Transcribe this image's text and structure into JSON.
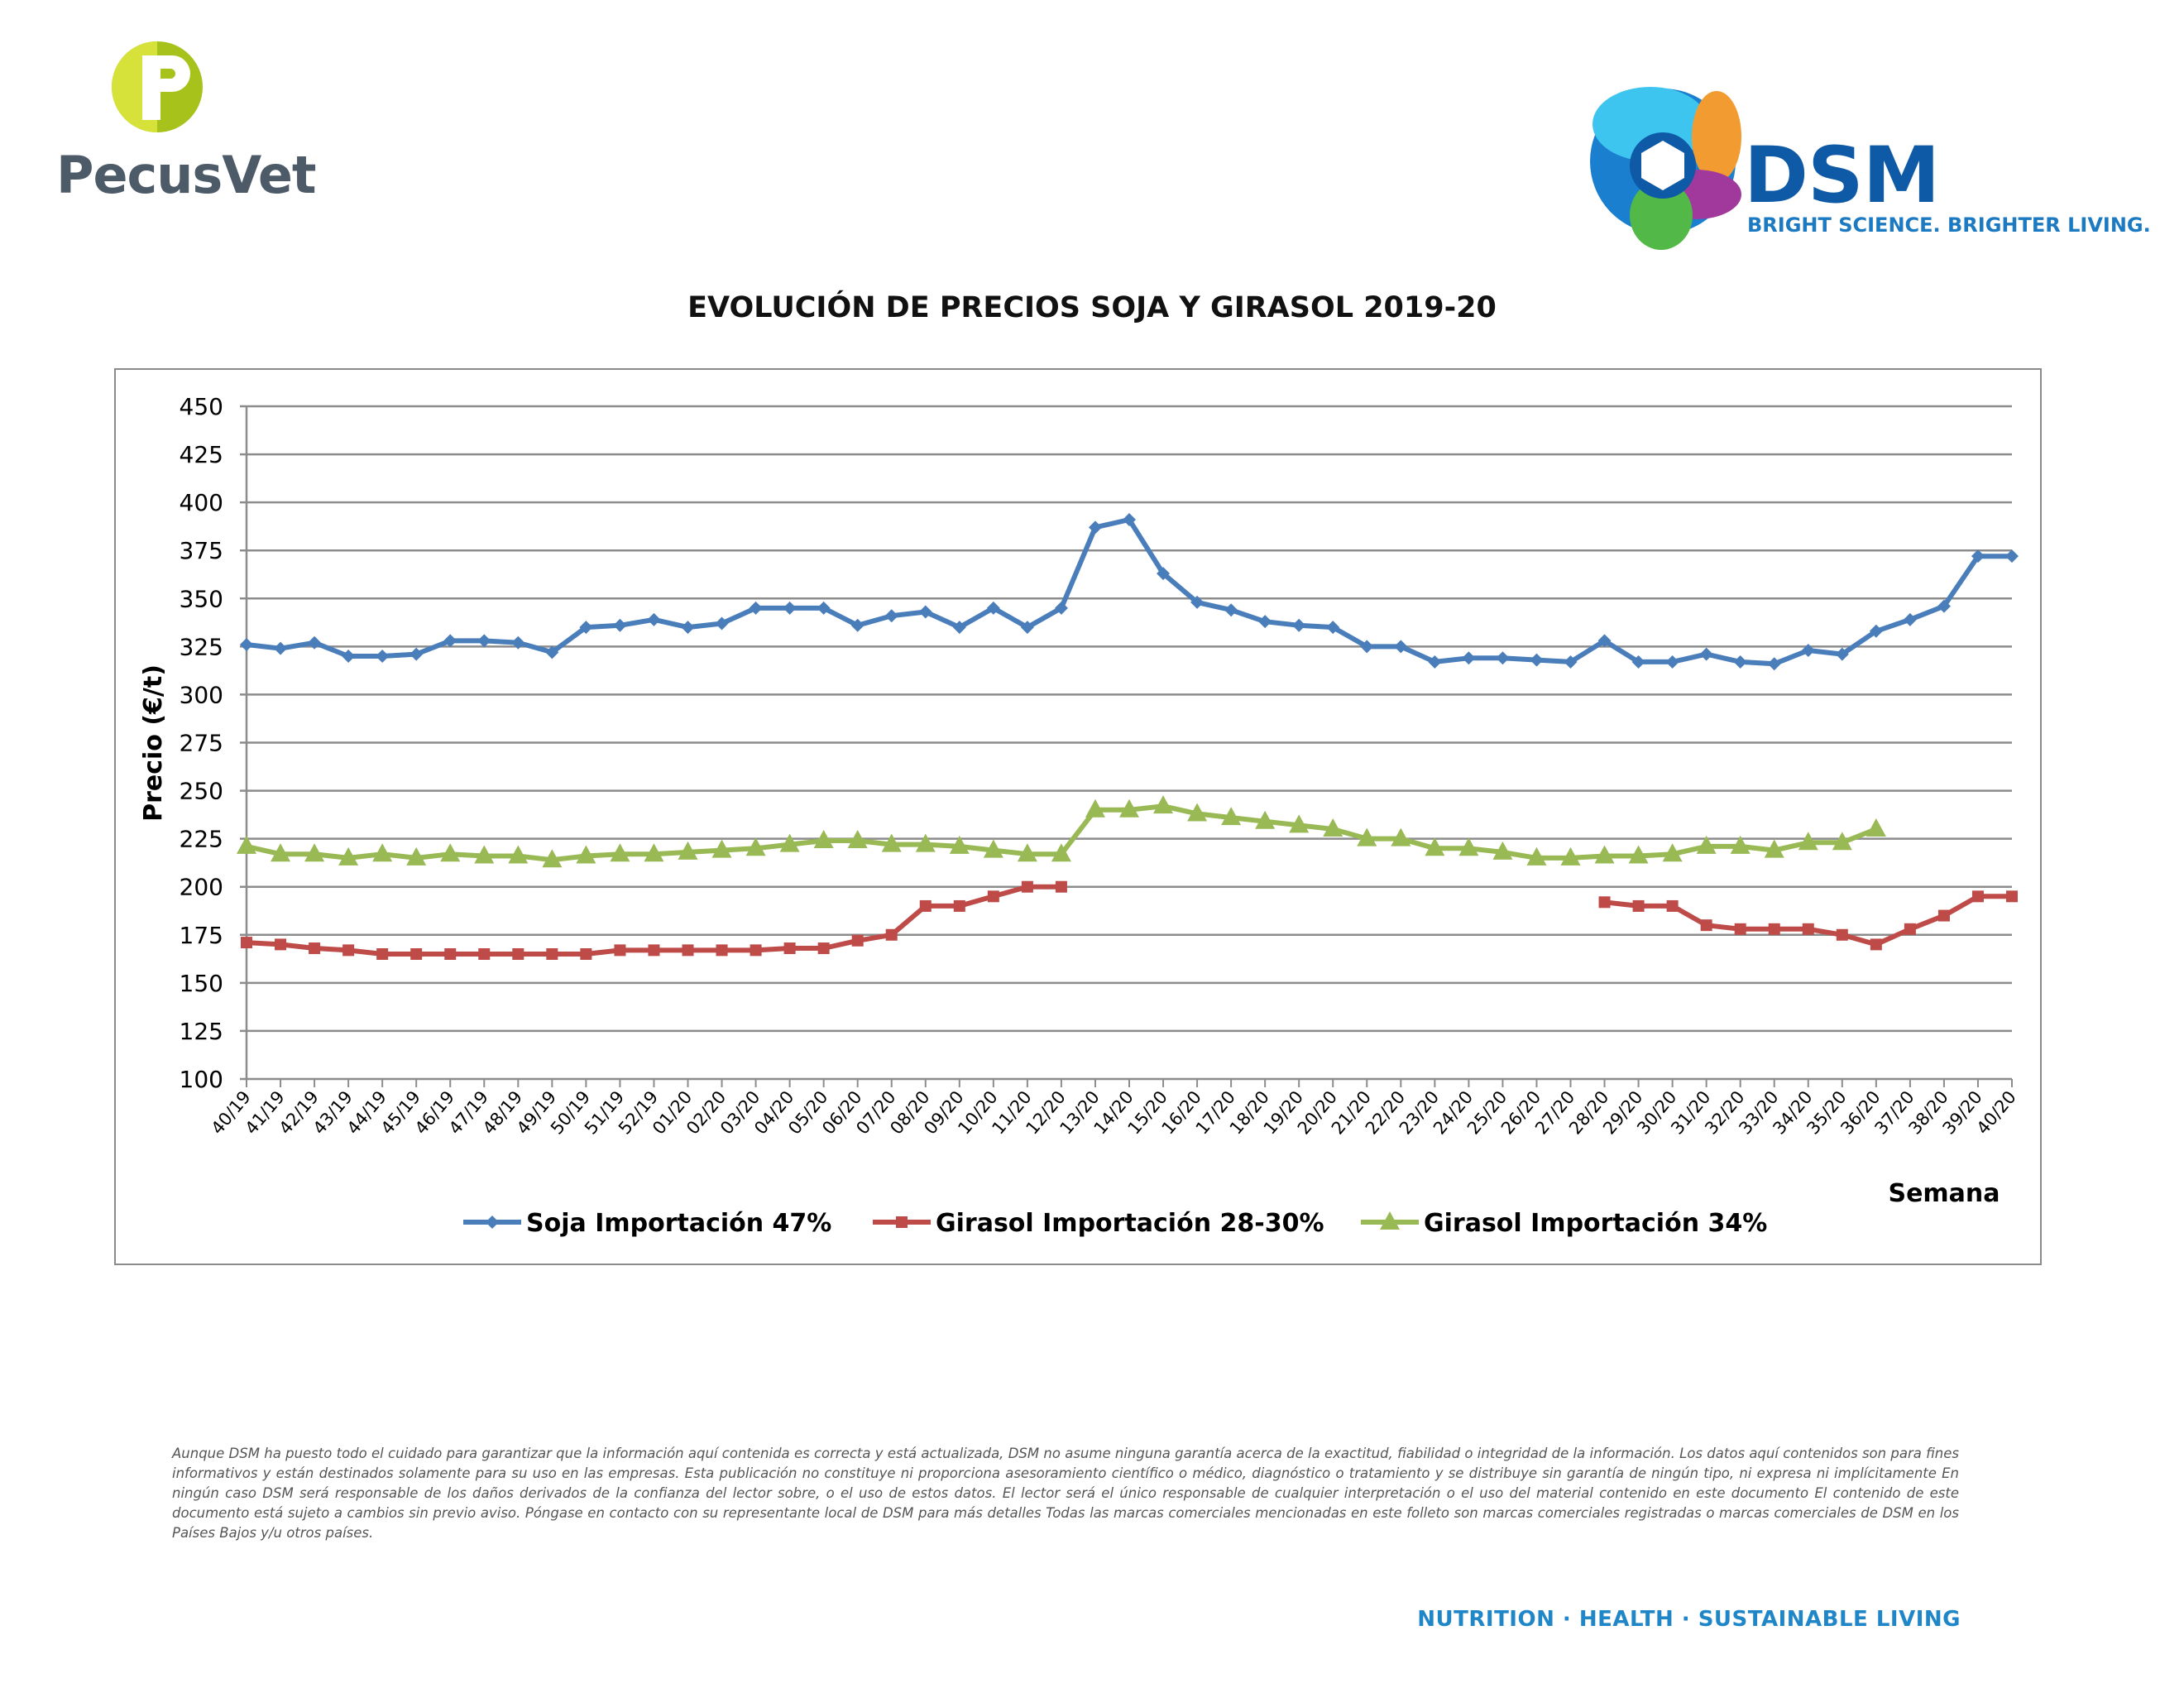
{
  "brand": {
    "left_logo_name": "PecusVet",
    "right_logo_name": "DSM",
    "right_logo_tagline": "BRIGHT SCIENCE. BRIGHTER LIVING.",
    "colors": {
      "pecus_green": "#a6c21b",
      "pecus_text": "#4d5a68",
      "dsm_blue": "#0e5aa7"
    }
  },
  "chart_data": {
    "type": "line",
    "title": "EVOLUCIÓN DE PRECIOS SOJA Y GIRASOL 2019-20",
    "xlabel": "Semana",
    "ylabel": "Precio (€/t)",
    "ylim": [
      100,
      450
    ],
    "ytick_step": 25,
    "grid": true,
    "legend_position": "bottom",
    "categories": [
      "40/19",
      "41/19",
      "42/19",
      "43/19",
      "44/19",
      "45/19",
      "46/19",
      "47/19",
      "48/19",
      "49/19",
      "50/19",
      "51/19",
      "52/19",
      "01/20",
      "02/20",
      "03/20",
      "04/20",
      "05/20",
      "06/20",
      "07/20",
      "08/20",
      "09/20",
      "10/20",
      "11/20",
      "12/20",
      "13/20",
      "14/20",
      "15/20",
      "16/20",
      "17/20",
      "18/20",
      "19/20",
      "20/20",
      "21/20",
      "22/20",
      "23/20",
      "24/20",
      "25/20",
      "26/20",
      "27/20",
      "28/20",
      "29/20",
      "30/20",
      "31/20",
      "32/20",
      "33/20",
      "34/20",
      "35/20",
      "36/20",
      "37/20",
      "38/20",
      "39/20",
      "40/20"
    ],
    "series": [
      {
        "name": "Soja Importación 47%",
        "color": "#4a7ebb",
        "marker": "diamond",
        "values": [
          326,
          324,
          327,
          320,
          320,
          321,
          328,
          328,
          327,
          322,
          335,
          336,
          339,
          335,
          337,
          345,
          345,
          345,
          336,
          341,
          343,
          335,
          345,
          335,
          345,
          387,
          391,
          363,
          348,
          344,
          338,
          336,
          335,
          325,
          325,
          317,
          319,
          319,
          318,
          317,
          328,
          317,
          317,
          321,
          317,
          316,
          323,
          321,
          333,
          339,
          346,
          372,
          372
        ]
      },
      {
        "name": "Girasol Importación 28-30%",
        "color": "#be4b48",
        "marker": "square",
        "values": [
          171,
          170,
          168,
          167,
          165,
          165,
          165,
          165,
          165,
          165,
          165,
          167,
          167,
          167,
          167,
          167,
          168,
          168,
          172,
          175,
          190,
          190,
          195,
          200,
          200,
          null,
          null,
          null,
          null,
          null,
          null,
          null,
          null,
          null,
          null,
          null,
          null,
          null,
          null,
          null,
          192,
          190,
          190,
          180,
          178,
          178,
          178,
          175,
          170,
          178,
          185,
          195,
          195
        ]
      },
      {
        "name": "Girasol Importación 34%",
        "color": "#98b954",
        "marker": "triangle",
        "values": [
          221,
          217,
          217,
          215,
          217,
          215,
          217,
          216,
          216,
          214,
          216,
          217,
          217,
          218,
          219,
          220,
          222,
          224,
          224,
          222,
          222,
          221,
          219,
          217,
          217,
          240,
          240,
          242,
          238,
          236,
          234,
          232,
          230,
          225,
          225,
          220,
          220,
          218,
          215,
          215,
          216,
          216,
          217,
          221,
          221,
          219,
          223,
          223,
          230,
          null,
          null,
          null,
          null
        ]
      }
    ]
  },
  "disclaimer": "Aunque DSM ha puesto todo el cuidado para garantizar que la información aquí contenida es correcta y está actualizada, DSM no asume ninguna garantía acerca de la exactitud, fiabilidad o integridad de la información. Los datos aquí contenidos son para fines informativos y están destinados solamente para su uso en las empresas. Esta publicación no constituye ni proporciona asesoramiento científico o médico, diagnóstico o tratamiento y se distribuye sin garantía de ningún tipo, ni expresa ni implícitamente En ningún caso DSM será responsable de los daños derivados de la confianza del lector sobre, o el uso de estos datos. El lector será el único responsable de cualquier interpretación o el uso del material contenido en este documento El contenido de este documento está sujeto a cambios sin previo aviso. Póngase en contacto con su representante local de DSM para más detalles Todas las marcas comerciales mencionadas en este folleto son marcas comerciales registradas o marcas comerciales de DSM en los Países Bajos y/u otros países.",
  "footer_tagline": "NUTRITION · HEALTH · SUSTAINABLE LIVING"
}
